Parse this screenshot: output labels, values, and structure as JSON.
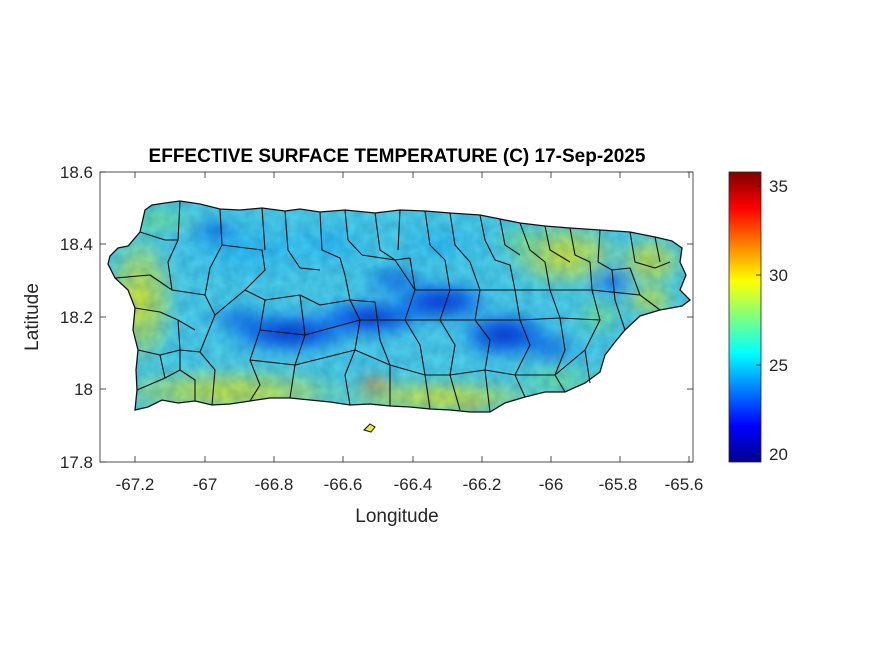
{
  "map": {
    "title": "EFFECTIVE SURFACE TEMPERATURE (C) 17-Sep-2025",
    "xlabel": "Longitude",
    "ylabel": "Latitude",
    "region": "Puerto Rico",
    "xlim": [
      -67.3,
      -65.59
    ],
    "ylim": [
      17.8,
      18.6
    ],
    "xticks": [
      "-67.2",
      "-67",
      "-66.8",
      "-66.6",
      "-66.4",
      "-66.2",
      "-66",
      "-65.8",
      "-65.6"
    ],
    "yticks": [
      "18.6",
      "18.4",
      "18.2",
      "18",
      "17.8"
    ],
    "colormap": "jet",
    "colorbar": {
      "min": 19.7,
      "max": 35.9,
      "ticks": [
        "35",
        "30",
        "25",
        "20"
      ]
    },
    "pattern": "Cool (20–24 C) along the central mountain ridge from about -66.85 to -66.2; warm (29–31 C) on the northeast coast and the south coast; hotspot near 32 C around -66.55, 17.98.",
    "colors": {
      "cold": "#00008f",
      "cool": "#0080ff",
      "mild": "#40e0d0",
      "warm": "#ffff00",
      "hot": "#ff2000",
      "extreme": "#800000"
    }
  }
}
